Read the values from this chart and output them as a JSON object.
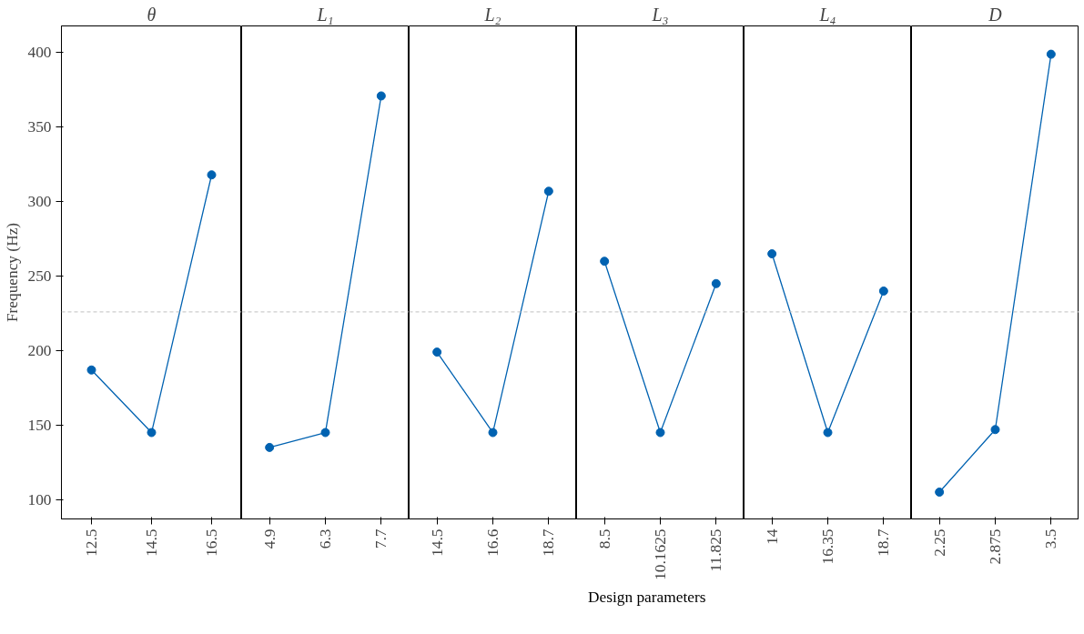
{
  "chart_data": [
    {
      "type": "line",
      "title": "θ",
      "ylabel": "Frequency (Hz)",
      "categories": [
        "12.5",
        "14.5",
        "16.5"
      ],
      "series": [
        {
          "color": "#0062b1",
          "values": [
            187,
            145,
            318
          ]
        }
      ],
      "ylim": [
        87,
        418
      ],
      "yticks": [
        100,
        150,
        200,
        250,
        300,
        350,
        400
      ],
      "marker": "circle",
      "line_style": "solid",
      "grid": false,
      "ref_lines": [
        {
          "axis": "y",
          "value": 226,
          "color": "#c0c0c0",
          "line_style": "dashed"
        }
      ]
    },
    {
      "type": "line",
      "title": "L₁",
      "categories": [
        "4.9",
        "6.3",
        "7.7"
      ],
      "series": [
        {
          "color": "#0062b1",
          "values": [
            135,
            145,
            371
          ]
        }
      ],
      "ylim": [
        87,
        418
      ],
      "tick_labels": "x",
      "marker": "circle",
      "line_style": "solid",
      "grid": false,
      "ref_lines": [
        {
          "axis": "y",
          "value": 226,
          "color": "#c0c0c0",
          "line_style": "dashed"
        }
      ]
    },
    {
      "type": "line",
      "title": "L₂",
      "categories": [
        "14.5",
        "16.6",
        "18.7"
      ],
      "series": [
        {
          "color": "#0062b1",
          "values": [
            199,
            145,
            307
          ]
        }
      ],
      "ylim": [
        87,
        418
      ],
      "tick_labels": "x",
      "marker": "circle",
      "line_style": "solid",
      "grid": false,
      "ref_lines": [
        {
          "axis": "y",
          "value": 226,
          "color": "#c0c0c0",
          "line_style": "dashed"
        }
      ]
    },
    {
      "type": "line",
      "title": "L₃",
      "xlabel": "Design parameters",
      "categories": [
        "8.5",
        "10.1625",
        "11.825"
      ],
      "series": [
        {
          "color": "#0062b1",
          "values": [
            260,
            145,
            245
          ]
        }
      ],
      "ylim": [
        87,
        418
      ],
      "tick_labels": "x",
      "marker": "circle",
      "line_style": "solid",
      "grid": false,
      "ref_lines": [
        {
          "axis": "y",
          "value": 226,
          "color": "#c0c0c0",
          "line_style": "dashed"
        }
      ]
    },
    {
      "type": "line",
      "title": "L₄",
      "categories": [
        "14",
        "16.35",
        "18.7"
      ],
      "series": [
        {
          "color": "#0062b1",
          "values": [
            265,
            145,
            240
          ]
        }
      ],
      "ylim": [
        87,
        418
      ],
      "tick_labels": "x",
      "marker": "circle",
      "line_style": "solid",
      "grid": false,
      "ref_lines": [
        {
          "axis": "y",
          "value": 226,
          "color": "#c0c0c0",
          "line_style": "dashed"
        }
      ]
    },
    {
      "type": "line",
      "title": "D",
      "categories": [
        "2.25",
        "2.875",
        "3.5"
      ],
      "series": [
        {
          "color": "#0062b1",
          "values": [
            105,
            147,
            399
          ]
        }
      ],
      "ylim": [
        87,
        418
      ],
      "tick_labels": "x",
      "marker": "circle",
      "line_style": "solid",
      "grid": false,
      "ref_lines": [
        {
          "axis": "y",
          "value": 226,
          "color": "#c0c0c0",
          "line_style": "dashed"
        }
      ]
    }
  ]
}
